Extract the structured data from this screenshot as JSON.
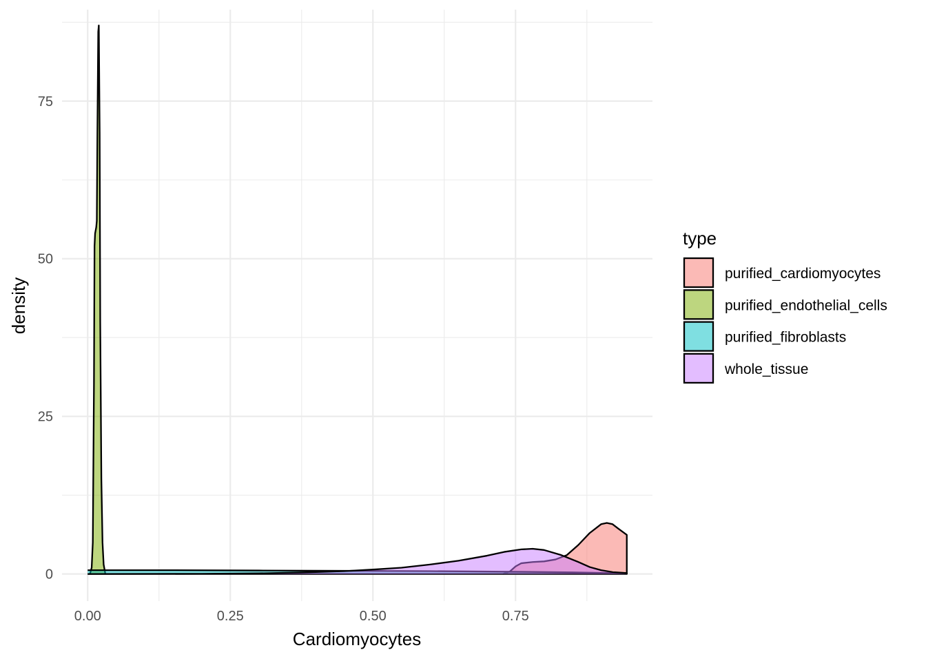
{
  "chart_data": {
    "type": "area",
    "title": "",
    "xlabel": "Cardiomyocytes",
    "ylabel": "density",
    "xlim": [
      -0.045,
      0.99
    ],
    "ylim": [
      -4.3,
      89.5
    ],
    "x_ticks": [
      0.0,
      0.25,
      0.5,
      0.75
    ],
    "x_tick_labels": [
      "0.00",
      "0.25",
      "0.50",
      "0.75"
    ],
    "x_minor_ticks": [
      0.125,
      0.375,
      0.625,
      0.875
    ],
    "y_ticks": [
      0,
      25,
      50,
      75
    ],
    "y_tick_labels": [
      "0",
      "25",
      "50",
      "75"
    ],
    "y_minor_ticks": [
      12.5,
      37.5,
      62.5,
      87.5
    ],
    "grid": true,
    "legend": {
      "title": "type",
      "position": "right",
      "entries": [
        "purified_cardiomyocytes",
        "purified_endothelial_cells",
        "purified_fibroblasts",
        "whole_tissue"
      ]
    },
    "series": [
      {
        "name": "purified_cardiomyocytes",
        "color": "#F8766D",
        "points": [
          [
            0.728,
            0
          ],
          [
            0.74,
            0.4
          ],
          [
            0.75,
            1.2
          ],
          [
            0.76,
            1.7
          ],
          [
            0.78,
            1.9
          ],
          [
            0.8,
            2.0
          ],
          [
            0.82,
            2.3
          ],
          [
            0.84,
            3.0
          ],
          [
            0.86,
            4.6
          ],
          [
            0.88,
            6.5
          ],
          [
            0.9,
            7.9
          ],
          [
            0.91,
            8.1
          ],
          [
            0.92,
            7.9
          ],
          [
            0.93,
            7.2
          ],
          [
            0.945,
            6.2
          ],
          [
            0.945,
            0
          ]
        ]
      },
      {
        "name": "purified_endothelial_cells",
        "color": "#7CAE00",
        "points": [
          [
            0.004,
            0
          ],
          [
            0.007,
            1.0
          ],
          [
            0.009,
            5
          ],
          [
            0.011,
            30
          ],
          [
            0.012,
            52
          ],
          [
            0.013,
            54
          ],
          [
            0.015,
            55
          ],
          [
            0.016,
            56
          ],
          [
            0.017,
            70
          ],
          [
            0.0185,
            86
          ],
          [
            0.0195,
            87
          ],
          [
            0.021,
            70
          ],
          [
            0.022,
            40
          ],
          [
            0.024,
            15
          ],
          [
            0.026,
            5
          ],
          [
            0.028,
            1.5
          ],
          [
            0.031,
            0
          ]
        ]
      },
      {
        "name": "purified_fibroblasts",
        "color": "#00BFC4",
        "points": [
          [
            0.0,
            0.6
          ],
          [
            0.15,
            0.6
          ],
          [
            0.3,
            0.55
          ],
          [
            0.45,
            0.5
          ],
          [
            0.6,
            0.45
          ],
          [
            0.75,
            0.35
          ],
          [
            0.85,
            0.25
          ],
          [
            0.945,
            0.1
          ],
          [
            0.945,
            0
          ],
          [
            0.0,
            0
          ]
        ]
      },
      {
        "name": "whole_tissue",
        "color": "#C77CFF",
        "points": [
          [
            0.0,
            0
          ],
          [
            0.2,
            0.03
          ],
          [
            0.3,
            0.1
          ],
          [
            0.4,
            0.3
          ],
          [
            0.45,
            0.45
          ],
          [
            0.5,
            0.7
          ],
          [
            0.55,
            1.0
          ],
          [
            0.6,
            1.5
          ],
          [
            0.65,
            2.1
          ],
          [
            0.7,
            2.9
          ],
          [
            0.73,
            3.5
          ],
          [
            0.76,
            3.9
          ],
          [
            0.78,
            4.0
          ],
          [
            0.8,
            3.8
          ],
          [
            0.83,
            3.0
          ],
          [
            0.86,
            1.9
          ],
          [
            0.88,
            1.1
          ],
          [
            0.9,
            0.6
          ],
          [
            0.92,
            0.3
          ],
          [
            0.945,
            0.15
          ],
          [
            0.945,
            0
          ]
        ]
      }
    ]
  }
}
